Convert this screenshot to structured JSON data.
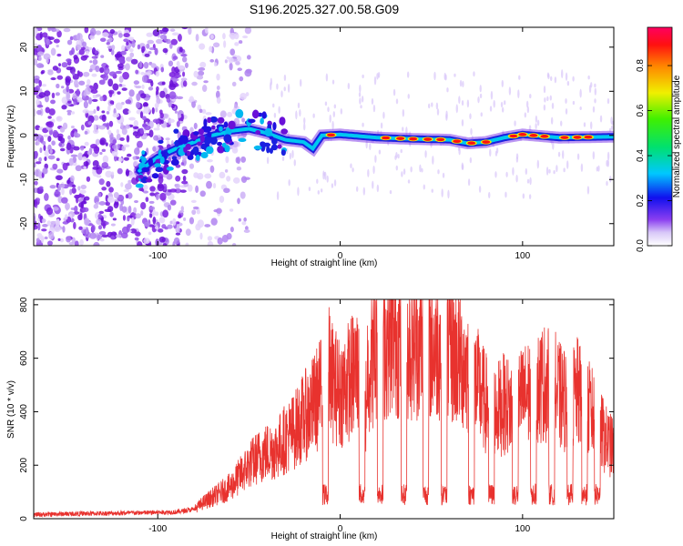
{
  "title": "S196.2025.327.00.58.G09",
  "chart_data": [
    {
      "type": "heatmap",
      "xlabel": "Height of straight line (km)",
      "ylabel": "Frequency (Hz)",
      "xlim": [
        -168,
        150
      ],
      "ylim": [
        -25,
        24.5
      ],
      "x_ticks": [
        -100,
        0,
        100
      ],
      "x_tick_labels": [
        "-100",
        "0",
        "100"
      ],
      "y_ticks": [
        -20,
        -10,
        0,
        10,
        20
      ],
      "y_tick_labels": [
        "-20",
        "-10",
        "0",
        "10",
        "20"
      ],
      "colorbar": {
        "label": "Normalized spectral amplitude",
        "range": [
          0,
          0.97
        ],
        "ticks": [
          0.0,
          0.2,
          0.4,
          0.6,
          0.8
        ],
        "tick_labels": [
          "0.0",
          "0.2",
          "0.4",
          "0.6",
          "0.8"
        ]
      },
      "ridge": {
        "x": [
          -110,
          -100,
          -90,
          -80,
          -70,
          -60,
          -50,
          -40,
          -30,
          -20,
          -15,
          -10,
          0,
          20,
          40,
          60,
          70,
          80,
          90,
          100,
          120,
          150
        ],
        "y": [
          -8,
          -5,
          -3,
          -1.5,
          0,
          1,
          1.5,
          0.5,
          -1,
          -1.5,
          -3,
          0,
          0.2,
          -0.5,
          -0.8,
          -1,
          -1.8,
          -1.5,
          -0.5,
          0.2,
          -0.5,
          -0.3
        ]
      }
    },
    {
      "type": "line",
      "xlabel": "Height of straight line (km)",
      "ylabel": "SNR (10 * v/v)",
      "xlim": [
        -168,
        150
      ],
      "ylim": [
        0,
        820
      ],
      "x_ticks": [
        -100,
        0,
        100
      ],
      "x_tick_labels": [
        "-100",
        "0",
        "100"
      ],
      "y_ticks": [
        0,
        200,
        400,
        600,
        800
      ],
      "y_tick_labels": [
        "0",
        "200",
        "400",
        "600",
        "800"
      ],
      "series": [
        {
          "name": "SNR",
          "color": "#e8322e",
          "x": [
            -168,
            -150,
            -130,
            -110,
            -90,
            -80,
            -75,
            -70,
            -60,
            -55,
            -50,
            -45,
            -40,
            -35,
            -30,
            -25,
            -20,
            -15,
            -10,
            -8,
            -5,
            0,
            5,
            10,
            12,
            15,
            20,
            25,
            28,
            30,
            35,
            40,
            45,
            50,
            55,
            60,
            65,
            70,
            75,
            80,
            85,
            90,
            95,
            100,
            105,
            110,
            115,
            120,
            125,
            130,
            135,
            140,
            145,
            150
          ],
          "values": [
            15,
            18,
            20,
            22,
            25,
            35,
            60,
            80,
            120,
            160,
            200,
            230,
            250,
            260,
            300,
            330,
            380,
            420,
            480,
            600,
            520,
            470,
            520,
            560,
            120,
            560,
            620,
            650,
            700,
            680,
            640,
            660,
            650,
            640,
            660,
            630,
            600,
            560,
            500,
            430,
            400,
            430,
            410,
            450,
            480,
            500,
            520,
            460,
            430,
            470,
            420,
            380,
            300,
            260
          ]
        }
      ]
    }
  ]
}
